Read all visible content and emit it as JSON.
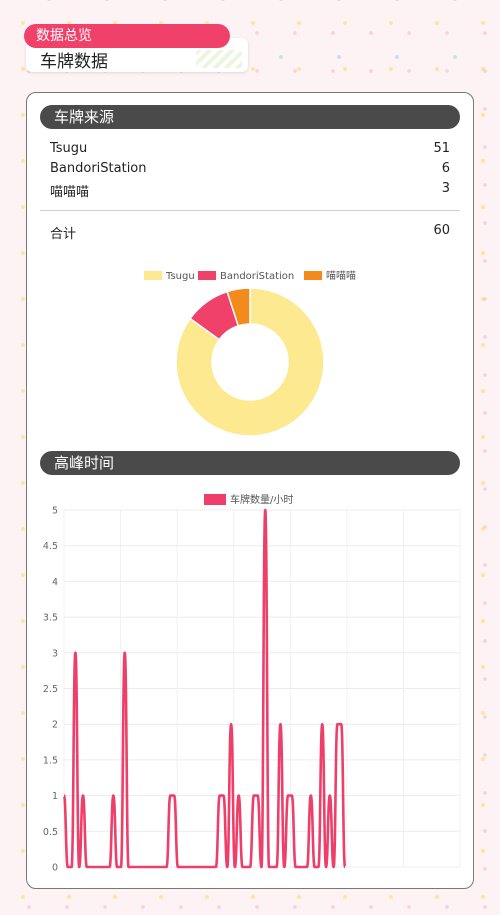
{
  "header": {
    "tag": "数据总览",
    "title": "车牌数据"
  },
  "sources": {
    "title": "车牌来源",
    "items": [
      {
        "name": "Tsugu",
        "value": "51"
      },
      {
        "name": "BandoriStation",
        "value": "6"
      },
      {
        "name": "喵喵喵",
        "value": "3"
      }
    ],
    "total": {
      "label": "合计",
      "value": "60"
    }
  },
  "peak": {
    "title": "高峰时间"
  },
  "chart_data": [
    {
      "type": "pie",
      "donut": true,
      "labels": [
        "Tsugu",
        "BandoriStation",
        "喵喵喵"
      ],
      "values": [
        51,
        6,
        3
      ],
      "colors": [
        "#fde98f",
        "#f0416b",
        "#f28a1c"
      ],
      "legend": "top"
    },
    {
      "type": "line",
      "series": [
        {
          "name": "车牌数量/小时",
          "color": "#ee3f6a",
          "values": [
            1,
            0,
            0,
            3,
            0,
            1,
            0,
            0,
            0,
            0,
            0,
            0,
            0,
            1,
            0,
            0,
            3,
            0,
            0,
            0,
            0,
            0,
            0,
            0,
            0,
            0,
            0,
            0,
            1,
            1,
            0,
            0,
            0,
            0,
            0,
            0,
            0,
            0,
            0,
            0,
            0,
            1,
            1,
            0,
            2,
            0,
            1,
            0,
            0,
            0,
            1,
            1,
            0,
            5,
            0,
            0,
            0,
            2,
            0,
            1,
            1,
            0,
            0,
            0,
            0,
            1,
            0,
            0,
            2,
            0,
            1,
            0,
            2,
            2,
            0
          ]
        }
      ],
      "ylim": [
        0,
        5
      ],
      "yticks": [
        "0",
        "0.5",
        "1",
        "1.5",
        "2",
        "2.5",
        "3",
        "3.5",
        "4",
        "4.5",
        "5"
      ],
      "grid": true,
      "legend": "top"
    }
  ]
}
